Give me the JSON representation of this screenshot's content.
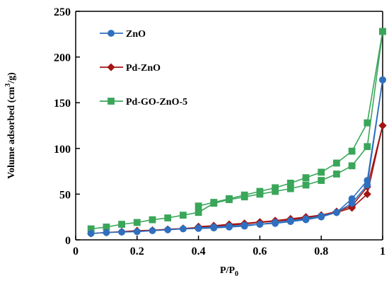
{
  "chart_data": {
    "type": "line",
    "title": "",
    "xlabel": "P/P",
    "xlabel_subscript": "0",
    "ylabel_prefix": "Volume adsorbed (cm",
    "ylabel_superscript": "3",
    "ylabel_suffix": "/g)",
    "xlim": [
      0,
      1
    ],
    "ylim": [
      0,
      250
    ],
    "xticks": [
      0,
      0.2,
      0.4,
      0.6,
      0.8,
      1
    ],
    "xtick_labels": [
      "0",
      "0.2",
      "0.4",
      "0.6",
      "0.8",
      "1"
    ],
    "yticks": [
      0,
      50,
      100,
      150,
      200,
      250
    ],
    "ytick_labels": [
      "0",
      "50",
      "100",
      "150",
      "200",
      "250"
    ],
    "grid": false,
    "legend_position": "top-left",
    "series": [
      {
        "name": "ZnO",
        "color": "#2f6fbf",
        "marker": "circle",
        "adsorption": {
          "x": [
            0.05,
            0.1,
            0.15,
            0.2,
            0.25,
            0.3,
            0.35,
            0.4,
            0.45,
            0.5,
            0.55,
            0.6,
            0.65,
            0.7,
            0.75,
            0.8,
            0.85,
            0.9,
            0.95,
            1.0
          ],
          "y": [
            7,
            8,
            8.5,
            9,
            10,
            11,
            12,
            12.5,
            13,
            14,
            15,
            17,
            18,
            20,
            22,
            25,
            30,
            45,
            65,
            175
          ]
        },
        "desorption": {
          "x": [
            1.0,
            0.95,
            0.9,
            0.85,
            0.8,
            0.75,
            0.7,
            0.65,
            0.6,
            0.55,
            0.5,
            0.45,
            0.4
          ],
          "y": [
            175,
            60,
            40,
            30,
            26,
            23,
            21,
            19,
            17,
            16,
            15,
            14,
            13
          ]
        }
      },
      {
        "name": "Pd-ZnO",
        "color": "#a31515",
        "marker": "diamond",
        "adsorption": {
          "x": [
            0.05,
            0.1,
            0.15,
            0.2,
            0.25,
            0.3,
            0.35,
            0.4,
            0.45,
            0.5,
            0.55,
            0.6,
            0.65,
            0.7,
            0.75,
            0.8,
            0.85,
            0.9,
            0.95,
            1.0
          ],
          "y": [
            7,
            8,
            9,
            10,
            10.5,
            11.5,
            12.5,
            13.5,
            15,
            16,
            17.5,
            19,
            20.5,
            22,
            24,
            27,
            30,
            35,
            50,
            125
          ]
        },
        "desorption": {
          "x": [
            1.0,
            0.95,
            0.9,
            0.85,
            0.8,
            0.75,
            0.7,
            0.65,
            0.6,
            0.55,
            0.5,
            0.45,
            0.4
          ],
          "y": [
            125,
            58,
            37,
            31,
            27,
            25,
            23,
            21,
            19.5,
            18,
            17,
            15.5,
            14.5
          ]
        }
      },
      {
        "name": "Pd-GO-ZnO-5",
        "color": "#3aa65a",
        "marker": "square",
        "adsorption": {
          "x": [
            0.05,
            0.1,
            0.15,
            0.2,
            0.25,
            0.3,
            0.35,
            0.4,
            0.45,
            0.5,
            0.55,
            0.6,
            0.65,
            0.7,
            0.75,
            0.8,
            0.85,
            0.9,
            0.95,
            1.0
          ],
          "y": [
            12,
            14,
            17,
            19,
            22,
            24,
            27,
            30,
            40,
            44,
            47,
            50,
            53,
            56,
            60,
            65,
            72,
            81,
            102,
            228
          ]
        },
        "desorption": {
          "x": [
            1.0,
            0.95,
            0.9,
            0.85,
            0.8,
            0.75,
            0.7,
            0.65,
            0.6,
            0.55,
            0.5,
            0.45,
            0.4
          ],
          "y": [
            228,
            128,
            97,
            84,
            74,
            68,
            62,
            57,
            53,
            49,
            45,
            41,
            37
          ]
        }
      }
    ]
  }
}
